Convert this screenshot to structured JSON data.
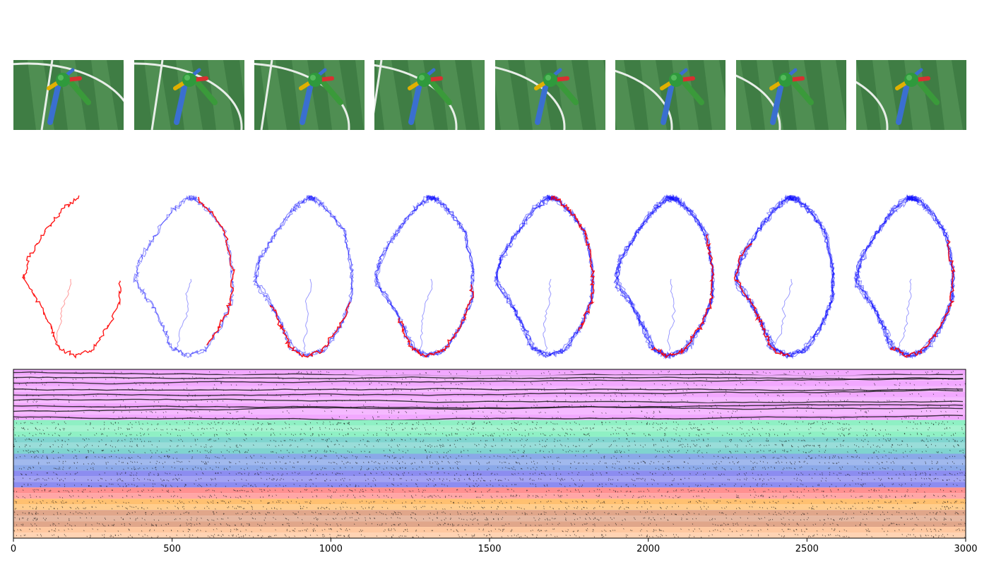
{
  "figure": {
    "background": "#ffffff",
    "render_frames": {
      "count": 8,
      "grass_dark": "#3f7d44",
      "grass_light": "#5a9a5c",
      "line_color": "#e8eee8",
      "body_color": "#2f9a3c",
      "leg_colors": [
        "#3a6fd0",
        "#3a9a3a",
        "#e0b000",
        "#d83030"
      ]
    },
    "trajectories": {
      "count": 8,
      "current_color": "#ff0000",
      "history_color": "#0000ff"
    },
    "raster": {
      "x_ticks": [
        "0",
        "500",
        "1000",
        "1500",
        "2000",
        "2500",
        "3000"
      ],
      "x_range": [
        0,
        3000
      ],
      "bands": [
        {
          "rows": 9,
          "color": "#f2a8ff"
        },
        {
          "rows": 3,
          "color": "#8ff0c4"
        },
        {
          "rows": 3,
          "color": "#7fd4cf"
        },
        {
          "rows": 3,
          "color": "#8aa8e8"
        },
        {
          "rows": 3,
          "color": "#8c8cf0"
        },
        {
          "rows": 2,
          "color": "#ff9090"
        },
        {
          "rows": 2,
          "color": "#ffc070"
        },
        {
          "rows": 3,
          "color": "#e0a68a"
        },
        {
          "rows": 2,
          "color": "#ffc8a0"
        }
      ]
    }
  }
}
